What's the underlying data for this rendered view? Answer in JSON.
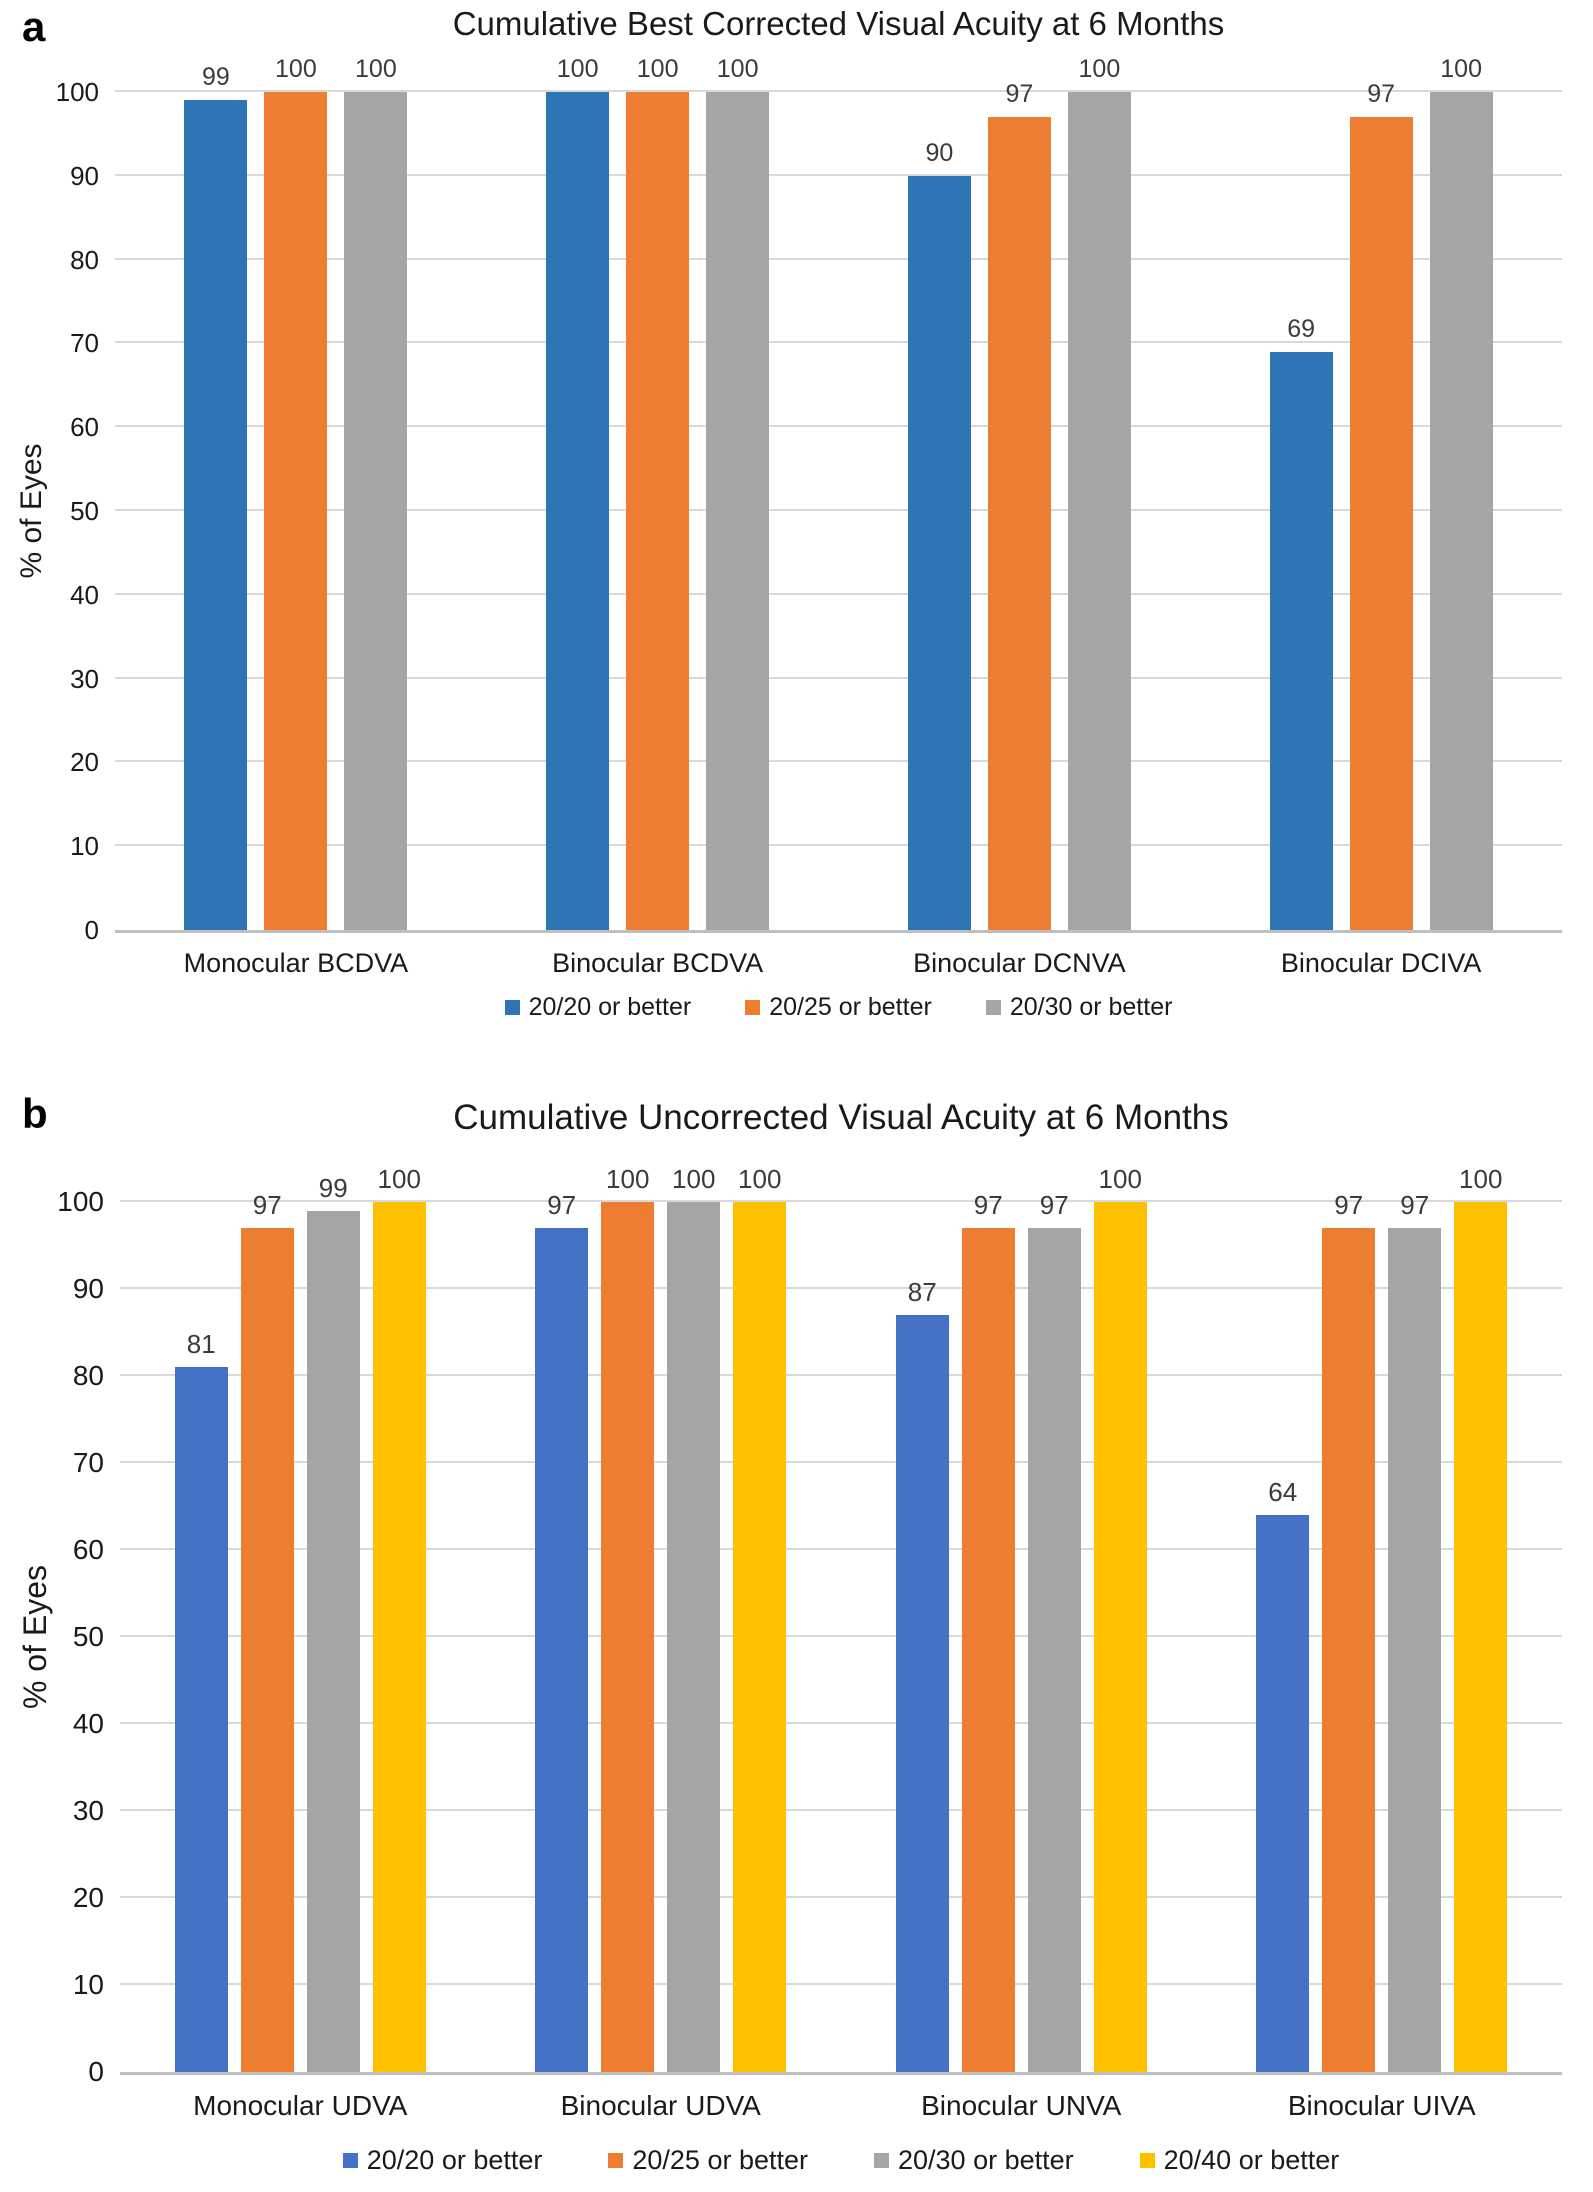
{
  "chart_data": [
    {
      "panel_label": "a",
      "type": "bar",
      "title": "Cumulative Best Corrected Visual Acuity at 6 Months",
      "xlabel": "",
      "ylabel": "% of Eyes",
      "ylim": [
        0,
        100
      ],
      "yticks": [
        0,
        10,
        20,
        30,
        40,
        50,
        60,
        70,
        80,
        90,
        100
      ],
      "grid": true,
      "legend_position": "bottom",
      "bar_value_labels": true,
      "categories": [
        "Monocular BCDVA",
        "Binocular BCDVA",
        "Binocular DCNVA",
        "Binocular DCIVA"
      ],
      "series": [
        {
          "name": "20/20 or better",
          "color": "#2E75B6",
          "values": [
            99,
            100,
            90,
            69
          ]
        },
        {
          "name": "20/25 or better",
          "color": "#ED7D31",
          "values": [
            100,
            100,
            97,
            97
          ]
        },
        {
          "name": "20/30 or better",
          "color": "#A5A5A5",
          "values": [
            100,
            100,
            100,
            100
          ]
        }
      ]
    },
    {
      "panel_label": "b",
      "type": "bar",
      "title": "Cumulative Uncorrected Visual Acuity at 6 Months",
      "xlabel": "",
      "ylabel": "% of Eyes",
      "ylim": [
        0,
        100
      ],
      "yticks": [
        0,
        10,
        20,
        30,
        40,
        50,
        60,
        70,
        80,
        90,
        100
      ],
      "grid": true,
      "legend_position": "bottom",
      "bar_value_labels": true,
      "categories": [
        "Monocular UDVA",
        "Binocular UDVA",
        "Binocular UNVA",
        "Binocular UIVA"
      ],
      "series": [
        {
          "name": "20/20 or better",
          "color": "#4472C4",
          "values": [
            81,
            97,
            87,
            64
          ]
        },
        {
          "name": "20/25 or better",
          "color": "#ED7D31",
          "values": [
            97,
            100,
            97,
            97
          ]
        },
        {
          "name": "20/30 or better",
          "color": "#A5A5A5",
          "values": [
            99,
            100,
            97,
            97
          ]
        },
        {
          "name": "20/40 or better",
          "color": "#FFC000",
          "values": [
            100,
            100,
            100,
            100
          ]
        }
      ]
    }
  ]
}
